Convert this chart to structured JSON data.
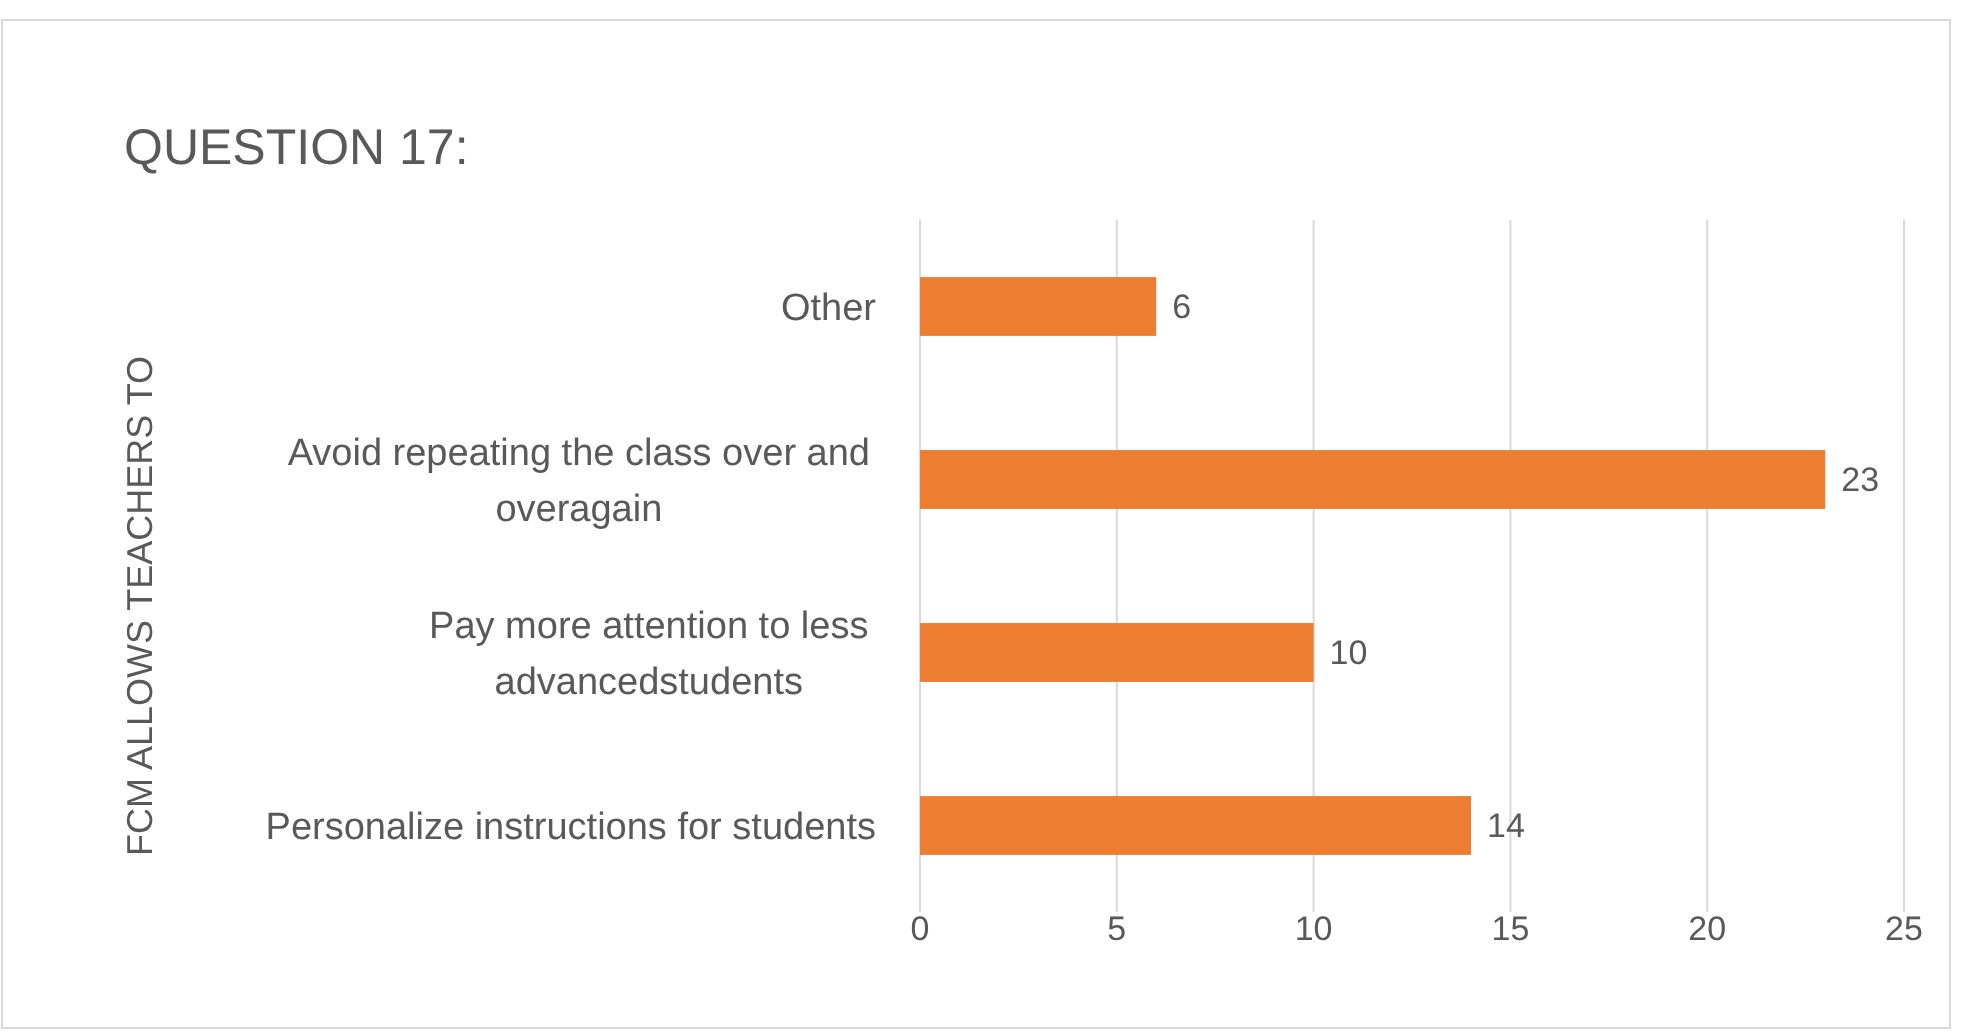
{
  "chart_data": {
    "type": "bar",
    "title": "QUESTION 17:",
    "ylabel": "FCM ALLOWS TEACHERS TO",
    "orientation": "horizontal",
    "categories": [
      "Other",
      "Avoid repeating the class over and overagain",
      "Pay more attention to less advancedstudents",
      "Personalize instructions for students"
    ],
    "values": [
      6,
      23,
      10,
      14
    ],
    "color": "#ed7d31",
    "xlim": [
      0,
      25
    ],
    "xticks": [
      0,
      5,
      10,
      15,
      20,
      25
    ],
    "grid": "x",
    "data_labels": true
  }
}
